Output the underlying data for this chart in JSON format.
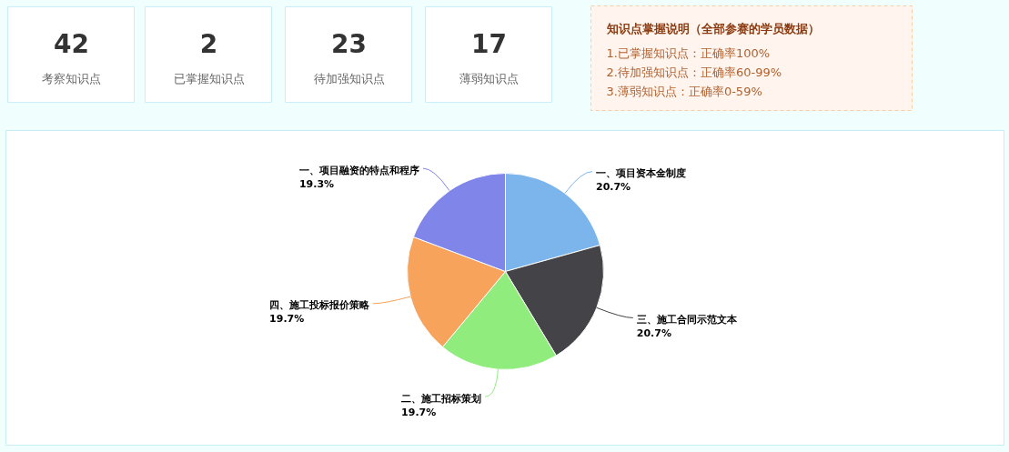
{
  "chart_data": [
    {
      "type": "other",
      "categories": [
        "考察知识点",
        "已掌握知识点",
        "待加强知识点",
        "薄弱知识点"
      ],
      "values": [
        42,
        2,
        23,
        17
      ],
      "data_labels": true
    },
    {
      "type": "other",
      "title": "知识点掌握说明（全部参赛的学员数据）",
      "annotations": [
        "1.已掌握知识点：正确率100%",
        "2.待加强知识点：正确率60-99%",
        "3.薄弱知识点：正确率0-59%"
      ]
    },
    {
      "type": "pie",
      "categories": [
        "一、项目资本金制度",
        "三、施工合同示范文本",
        "二、施工招标策划",
        "四、施工投标报价策略",
        "一、项目融资的特点和程序"
      ],
      "values": [
        20.7,
        20.7,
        19.7,
        19.7,
        19.3
      ],
      "colors": [
        "#7cb5ec",
        "#434348",
        "#90ed7d",
        "#f7a35c",
        "#8085e9"
      ],
      "value_labels": [
        "20.7%",
        "20.7%",
        "19.7%",
        "19.7%",
        "19.3%"
      ]
    }
  ]
}
